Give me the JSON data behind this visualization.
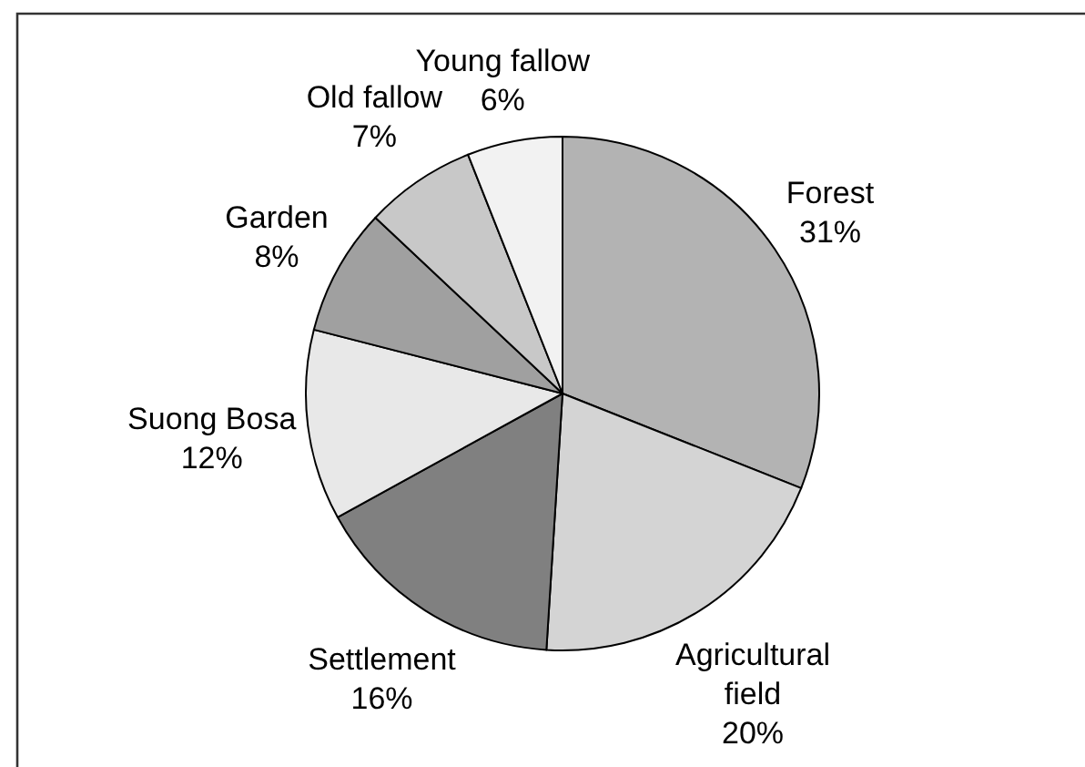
{
  "chart_data": {
    "type": "pie",
    "categories": [
      "Forest",
      "Agricultural field",
      "Settlement",
      "Suong Bosa",
      "Garden",
      "Old fallow",
      "Young fallow"
    ],
    "values": [
      31,
      20,
      16,
      12,
      8,
      7,
      6
    ],
    "colors": [
      "#b3b3b3",
      "#d4d4d4",
      "#808080",
      "#e8e8e8",
      "#a0a0a0",
      "#c8c8c8",
      "#f2f2f2"
    ],
    "value_labels": [
      "31%",
      "20%",
      "16%",
      "12%",
      "8%",
      "7%",
      "6%"
    ]
  }
}
